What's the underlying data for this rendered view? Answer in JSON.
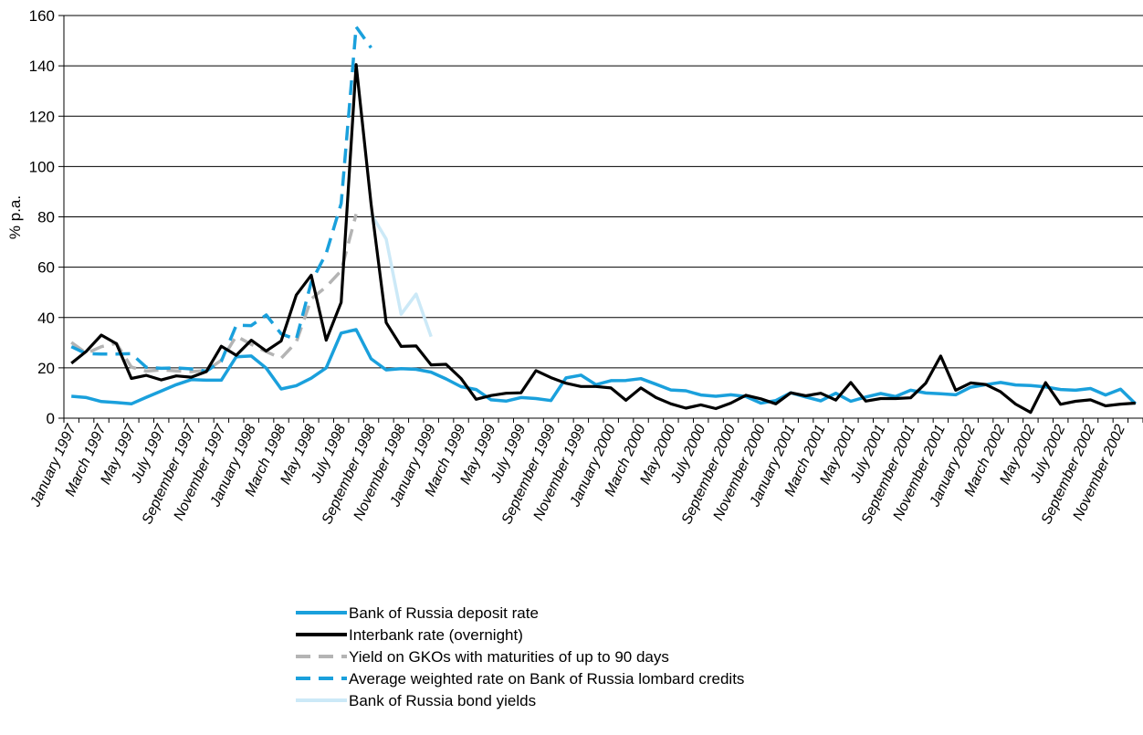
{
  "chart_data": {
    "type": "line",
    "title": "",
    "xlabel": "",
    "ylabel": "% p.a.",
    "ylim": [
      0,
      160
    ],
    "yticks": [
      0,
      20,
      40,
      60,
      80,
      100,
      120,
      140,
      160
    ],
    "grid": true,
    "legend_position": "bottom",
    "x": [
      "January 1997",
      "February 1997",
      "March 1997",
      "April 1997",
      "May 1997",
      "June 1997",
      "July 1997",
      "August 1997",
      "September 1997",
      "October 1997",
      "November 1997",
      "December 1997",
      "January 1998",
      "February 1998",
      "March 1998",
      "April 1998",
      "May 1998",
      "June 1998",
      "July 1998",
      "August 1998",
      "September 1998",
      "October 1998",
      "November 1998",
      "December 1998",
      "January 1999",
      "February 1999",
      "March 1999",
      "April 1999",
      "May 1999",
      "June 1999",
      "July 1999",
      "August 1999",
      "September 1999",
      "October 1999",
      "November 1999",
      "December 1999",
      "January 2000",
      "February 2000",
      "March 2000",
      "April 2000",
      "May 2000",
      "June 2000",
      "July 2000",
      "August 2000",
      "September 2000",
      "October 2000",
      "November 2000",
      "December 2000",
      "January 2001",
      "February 2001",
      "March 2001",
      "April 2001",
      "May 2001",
      "June 2001",
      "July 2001",
      "August 2001",
      "September 2001",
      "October 2001",
      "November 2001",
      "December 2001",
      "January 2002",
      "February 2002",
      "March 2002",
      "April 2002",
      "May 2002",
      "June 2002",
      "July 2002",
      "August 2002",
      "September 2002",
      "October 2002",
      "November 2002",
      "December 2002"
    ],
    "x_tick_labels": [
      "January 1997",
      "March 1997",
      "May 1997",
      "July 1997",
      "September 1997",
      "November 1997",
      "January 1998",
      "March 1998",
      "May 1998",
      "July 1998",
      "September 1998",
      "November 1998",
      "January 1999",
      "March 1999",
      "May 1999",
      "July 1999",
      "September 1999",
      "November 1999",
      "January 2000",
      "March 2000",
      "May 2000",
      "July 2000",
      "September 2000",
      "November 2000",
      "January 2001",
      "March 2001",
      "May 2001",
      "July 2001",
      "September 2001",
      "November 2001",
      "January 2002",
      "March 2002",
      "May 2002",
      "July 2002",
      "September 2002",
      "November 2002"
    ],
    "series": [
      {
        "name": "Bank of Russia deposit rate",
        "color": "#1aa0dc",
        "dash": "solid",
        "values": [
          8.7,
          8.2,
          6.6,
          6.2,
          5.7,
          8.3,
          10.8,
          13.3,
          15.3,
          15.1,
          15.1,
          24.4,
          24.7,
          19.9,
          11.6,
          12.9,
          15.9,
          20,
          33.8,
          35.2,
          23.6,
          19.2,
          19.7,
          19.4,
          18.3,
          15.6,
          12.5,
          11.4,
          7.3,
          6.8,
          8.2,
          7.8,
          7,
          16,
          17.1,
          13.3,
          14.9,
          15,
          15.7,
          13.5,
          11.2,
          10.9,
          9.2,
          8.7,
          9.3,
          8.6,
          6,
          7,
          10.1,
          8.4,
          6.9,
          9.9,
          6.7,
          8.4,
          9.8,
          8.6,
          11.1,
          10,
          9.7,
          9.3,
          12.3,
          13.3,
          14.2,
          13.2,
          13,
          12.4,
          11.4,
          11.1,
          11.8,
          9.2,
          11.5,
          5.7
        ]
      },
      {
        "name": "Interbank rate (overnight)",
        "color": "#000000",
        "dash": "solid",
        "values": [
          21.8,
          26.6,
          33,
          29.6,
          15.8,
          17,
          15.2,
          16.8,
          16.3,
          18.5,
          28.6,
          25,
          31,
          26.7,
          30.7,
          48.9,
          56.8,
          31,
          46,
          140.5,
          85,
          38,
          28.5,
          28.7,
          21.2,
          21.4,
          15.8,
          7.5,
          9,
          9.9,
          10.1,
          18.9,
          16.1,
          13.9,
          12.6,
          12.6,
          12,
          7.1,
          12,
          8.2,
          5.7,
          4,
          5.3,
          3.8,
          6,
          9.1,
          7.7,
          5.7,
          10.1,
          8.9,
          9.9,
          7.2,
          14.2,
          6.8,
          7.8,
          7.8,
          8.1,
          13.9,
          24.7,
          11.1,
          14,
          13.4,
          10.5,
          5.6,
          2.3,
          14.1,
          5.5,
          6.7,
          7.3,
          4.9,
          5.6,
          6
        ]
      },
      {
        "name": "Yield on GKOs with maturities of up to 90 days",
        "color": "#b4b4b4",
        "dash": "dashed",
        "values": [
          30.1,
          25.8,
          28.4,
          29.7,
          20.3,
          18.7,
          19.2,
          18.8,
          18.5,
          18.9,
          23,
          32.6,
          29.3,
          26.4,
          23.8,
          30.2,
          47.4,
          52.2,
          58.6,
          81.1,
          null,
          null,
          null,
          null,
          null,
          null,
          null,
          null,
          null,
          null,
          null,
          null,
          null,
          null,
          null,
          null,
          null,
          null,
          null,
          null,
          null,
          null,
          null,
          null,
          null,
          null,
          null,
          null,
          null,
          null,
          null,
          null,
          null,
          null,
          null,
          null,
          null,
          null,
          null,
          null,
          null,
          null,
          null,
          null,
          null,
          null,
          null,
          null,
          null,
          null,
          null,
          null
        ]
      },
      {
        "name": "Average weighted rate on Bank of Russia lombard credits",
        "color": "#1aa0dc",
        "dash": "dashed",
        "values": [
          28.4,
          25.6,
          25.5,
          25.5,
          25.6,
          20.2,
          19.8,
          20,
          19.6,
          18.7,
          22.6,
          36.9,
          36.8,
          41,
          33.5,
          31.3,
          54,
          65.5,
          85.3,
          155.5,
          147.2,
          null,
          null,
          null,
          null,
          null,
          null,
          null,
          null,
          null,
          null,
          null,
          null,
          null,
          null,
          null,
          null,
          null,
          null,
          null,
          null,
          null,
          null,
          null,
          null,
          null,
          null,
          null,
          null,
          null,
          null,
          null,
          null,
          null,
          null,
          null,
          null,
          null,
          null,
          null,
          null,
          null,
          null,
          null,
          null,
          null,
          null,
          null,
          null,
          null,
          null,
          null
        ]
      },
      {
        "name": " Bank of Russia bond yields",
        "color": "#cce9f7",
        "dash": "solid",
        "values": [
          null,
          null,
          null,
          null,
          null,
          null,
          null,
          null,
          null,
          null,
          null,
          null,
          null,
          null,
          null,
          null,
          null,
          null,
          null,
          null,
          81.2,
          71.2,
          41.3,
          49.3,
          32.4,
          null,
          null,
          null,
          null,
          null,
          null,
          null,
          null,
          null,
          null,
          null,
          null,
          null,
          null,
          null,
          null,
          null,
          null,
          null,
          null,
          null,
          null,
          null,
          null,
          null,
          null,
          null,
          null,
          null,
          null,
          null,
          null,
          null,
          null,
          null,
          null,
          null,
          null,
          null,
          null,
          null,
          null,
          null,
          null,
          null,
          null,
          null
        ]
      }
    ]
  }
}
